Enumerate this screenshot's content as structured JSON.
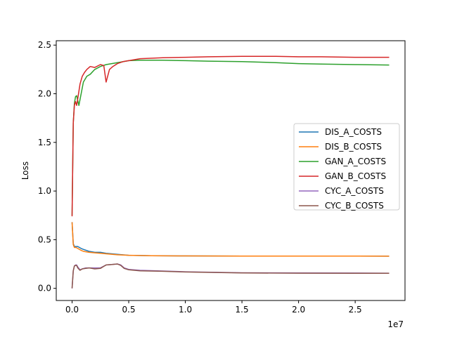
{
  "chart_data": {
    "type": "line",
    "title": "",
    "xlabel": "",
    "ylabel": "Loss",
    "x_offset_text": "1e7",
    "xlim": [
      -1400000,
      29400000
    ],
    "ylim": [
      -0.125,
      2.545
    ],
    "x_ticks": [
      0,
      5000000,
      10000000,
      15000000,
      20000000,
      25000000
    ],
    "x_tick_labels": [
      "0.0",
      "0.5",
      "1.0",
      "1.5",
      "2.0",
      "2.5"
    ],
    "y_ticks": [
      0.0,
      0.5,
      1.0,
      1.5,
      2.0,
      2.5
    ],
    "y_tick_labels": [
      "0.0",
      "0.5",
      "1.0",
      "1.5",
      "2.0",
      "2.5"
    ],
    "grid": false,
    "legend_position": "right",
    "series": [
      {
        "name": "DIS_A_COSTS",
        "color": "#1f77b4",
        "x": [
          0,
          100000,
          200000,
          350000,
          500000,
          800000,
          1000000,
          1500000,
          2000000,
          2500000,
          3000000,
          4000000,
          5000000,
          7000000,
          10000000,
          15000000,
          20000000,
          25000000,
          28000000
        ],
        "y": [
          0.68,
          0.46,
          0.43,
          0.43,
          0.43,
          0.41,
          0.4,
          0.38,
          0.37,
          0.37,
          0.36,
          0.35,
          0.34,
          0.335,
          0.333,
          0.332,
          0.331,
          0.331,
          0.33
        ]
      },
      {
        "name": "DIS_B_COSTS",
        "color": "#ff7f0e",
        "x": [
          0,
          100000,
          200000,
          350000,
          500000,
          800000,
          1000000,
          1500000,
          2000000,
          2500000,
          3000000,
          4000000,
          5000000,
          7000000,
          10000000,
          15000000,
          20000000,
          25000000,
          28000000
        ],
        "y": [
          0.68,
          0.45,
          0.42,
          0.42,
          0.41,
          0.39,
          0.38,
          0.37,
          0.365,
          0.36,
          0.355,
          0.345,
          0.34,
          0.335,
          0.333,
          0.332,
          0.331,
          0.331,
          0.33
        ]
      },
      {
        "name": "GAN_A_COSTS",
        "color": "#2ca02c",
        "x": [
          0,
          100000,
          200000,
          300000,
          400000,
          600000,
          800000,
          1000000,
          1300000,
          1600000,
          2000000,
          2500000,
          3000000,
          3500000,
          4000000,
          5000000,
          6000000,
          8000000,
          10000000,
          12000000,
          15000000,
          18000000,
          20000000,
          22000000,
          25000000,
          28000000
        ],
        "y": [
          0.75,
          1.7,
          1.9,
          1.97,
          1.98,
          1.88,
          2.0,
          2.12,
          2.18,
          2.2,
          2.25,
          2.28,
          2.3,
          2.31,
          2.32,
          2.34,
          2.345,
          2.345,
          2.34,
          2.335,
          2.33,
          2.32,
          2.31,
          2.305,
          2.3,
          2.295
        ]
      },
      {
        "name": "GAN_B_COSTS",
        "color": "#d62728",
        "x": [
          0,
          100000,
          200000,
          300000,
          400000,
          500000,
          700000,
          900000,
          1100000,
          1300000,
          1600000,
          2000000,
          2500000,
          2800000,
          3000000,
          3300000,
          3600000,
          4000000,
          4500000,
          5000000,
          6000000,
          8000000,
          10000000,
          12000000,
          15000000,
          18000000,
          20000000,
          22000000,
          25000000,
          28000000
        ],
        "y": [
          0.74,
          1.7,
          1.88,
          1.92,
          1.88,
          1.95,
          2.1,
          2.18,
          2.22,
          2.25,
          2.28,
          2.27,
          2.3,
          2.29,
          2.12,
          2.25,
          2.28,
          2.31,
          2.33,
          2.34,
          2.36,
          2.37,
          2.375,
          2.38,
          2.385,
          2.385,
          2.38,
          2.38,
          2.375,
          2.375
        ]
      },
      {
        "name": "CYC_A_COSTS",
        "color": "#9467bd",
        "x": [
          0,
          100000,
          200000,
          300000,
          400000,
          500000,
          700000,
          900000,
          1200000,
          1500000,
          2000000,
          2500000,
          3000000,
          3500000,
          4000000,
          4300000,
          4600000,
          5000000,
          6000000,
          8000000,
          10000000,
          15000000,
          20000000,
          25000000,
          28000000
        ],
        "y": [
          0.0,
          0.18,
          0.23,
          0.24,
          0.24,
          0.22,
          0.19,
          0.2,
          0.21,
          0.21,
          0.21,
          0.21,
          0.24,
          0.245,
          0.25,
          0.24,
          0.21,
          0.195,
          0.185,
          0.178,
          0.17,
          0.16,
          0.158,
          0.157,
          0.156
        ]
      },
      {
        "name": "CYC_B_COSTS",
        "color": "#8c564b",
        "x": [
          0,
          100000,
          200000,
          300000,
          400000,
          500000,
          700000,
          900000,
          1200000,
          1500000,
          2000000,
          2500000,
          3000000,
          3500000,
          4000000,
          4300000,
          4600000,
          5000000,
          6000000,
          8000000,
          10000000,
          15000000,
          20000000,
          25000000,
          28000000
        ],
        "y": [
          0.0,
          0.18,
          0.23,
          0.235,
          0.235,
          0.21,
          0.185,
          0.2,
          0.205,
          0.21,
          0.2,
          0.205,
          0.24,
          0.245,
          0.25,
          0.235,
          0.205,
          0.19,
          0.18,
          0.175,
          0.168,
          0.158,
          0.156,
          0.155,
          0.154
        ]
      }
    ]
  }
}
